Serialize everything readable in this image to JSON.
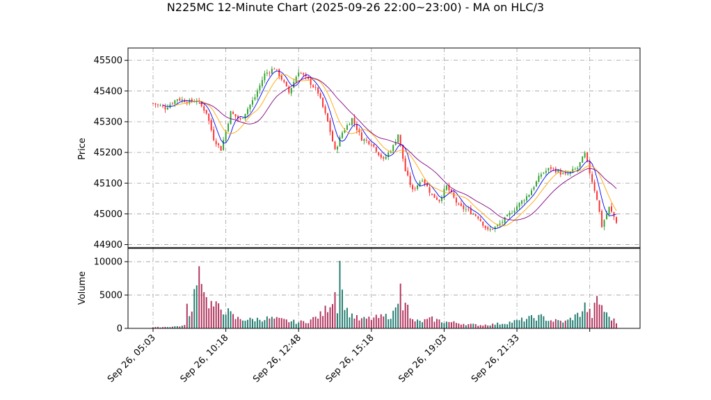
{
  "chart_data": {
    "type": "candlestick",
    "title": "N225MC 12-Minute Chart (2025-09-26 22:00~23:00) - MA on HLC/3",
    "ylabel": "Price",
    "volume_label": "Volume",
    "ylim": [
      44890,
      45540
    ],
    "volume_ylim": [
      0,
      12000
    ],
    "grid": true,
    "price_ticks": [
      45500,
      45400,
      45300,
      45200,
      45100,
      45000,
      44900
    ],
    "volume_ticks": [
      10000,
      5000,
      0
    ],
    "x_tick_labels": [
      "Sep 26, 05:03",
      "Sep 26, 10:18",
      "Sep 26, 12:48",
      "Sep 26, 15:18",
      "Sep 26, 19:03",
      "Sep 26, 21:33"
    ],
    "colors": {
      "up": "#2ca02c",
      "down": "#ff2a2a",
      "ma_fast": "#0000ee",
      "ma_mid": "#ffa500",
      "ma_slow": "#800080",
      "volume_up": "#1f7a6e",
      "volume_down": "#b0305a",
      "grid": "#9e9e9e"
    },
    "price_anchors": [
      [
        0,
        45360
      ],
      [
        5,
        45345
      ],
      [
        10,
        45375
      ],
      [
        15,
        45365
      ],
      [
        18,
        45370
      ],
      [
        22,
        45330
      ],
      [
        25,
        45245
      ],
      [
        28,
        45210
      ],
      [
        32,
        45330
      ],
      [
        36,
        45305
      ],
      [
        42,
        45380
      ],
      [
        46,
        45455
      ],
      [
        50,
        45475
      ],
      [
        53,
        45440
      ],
      [
        56,
        45395
      ],
      [
        60,
        45465
      ],
      [
        64,
        45435
      ],
      [
        68,
        45395
      ],
      [
        72,
        45300
      ],
      [
        75,
        45205
      ],
      [
        78,
        45265
      ],
      [
        82,
        45310
      ],
      [
        86,
        45245
      ],
      [
        90,
        45230
      ],
      [
        95,
        45175
      ],
      [
        99,
        45220
      ],
      [
        101,
        45260
      ],
      [
        104,
        45140
      ],
      [
        107,
        45075
      ],
      [
        111,
        45115
      ],
      [
        115,
        45060
      ],
      [
        118,
        45045
      ],
      [
        121,
        45090
      ],
      [
        126,
        45025
      ],
      [
        130,
        45010
      ],
      [
        134,
        44990
      ],
      [
        138,
        44945
      ],
      [
        142,
        44960
      ],
      [
        146,
        44990
      ],
      [
        150,
        45025
      ],
      [
        155,
        45065
      ],
      [
        160,
        45130
      ],
      [
        164,
        45150
      ],
      [
        170,
        45125
      ],
      [
        175,
        45150
      ],
      [
        178,
        45195
      ],
      [
        180,
        45135
      ],
      [
        183,
        45050
      ],
      [
        185,
        44960
      ],
      [
        188,
        45020
      ],
      [
        191,
        44975
      ]
    ],
    "volume_anchors": [
      [
        0,
        150
      ],
      [
        8,
        250
      ],
      [
        13,
        400
      ],
      [
        14,
        4900
      ],
      [
        15,
        1700
      ],
      [
        16,
        2100
      ],
      [
        18,
        9000
      ],
      [
        20,
        8500
      ],
      [
        22,
        4200
      ],
      [
        25,
        3300
      ],
      [
        30,
        2700
      ],
      [
        34,
        1500
      ],
      [
        40,
        1300
      ],
      [
        48,
        1500
      ],
      [
        56,
        1100
      ],
      [
        60,
        900
      ],
      [
        64,
        1100
      ],
      [
        68,
        1800
      ],
      [
        70,
        2200
      ],
      [
        73,
        3800
      ],
      [
        75,
        5400
      ],
      [
        76,
        3200
      ],
      [
        77,
        11200
      ],
      [
        78,
        5200
      ],
      [
        80,
        2500
      ],
      [
        85,
        1300
      ],
      [
        90,
        1500
      ],
      [
        95,
        1700
      ],
      [
        99,
        2100
      ],
      [
        100,
        3700
      ],
      [
        101,
        3200
      ],
      [
        102,
        8800
      ],
      [
        103,
        3800
      ],
      [
        104,
        4800
      ],
      [
        106,
        1300
      ],
      [
        110,
        1000
      ],
      [
        115,
        1400
      ],
      [
        120,
        1000
      ],
      [
        126,
        800
      ],
      [
        130,
        600
      ],
      [
        135,
        500
      ],
      [
        140,
        600
      ],
      [
        145,
        800
      ],
      [
        150,
        1100
      ],
      [
        155,
        1500
      ],
      [
        160,
        1700
      ],
      [
        164,
        1200
      ],
      [
        170,
        1000
      ],
      [
        176,
        2200
      ],
      [
        178,
        3300
      ],
      [
        181,
        1900
      ],
      [
        183,
        4200
      ],
      [
        185,
        3400
      ],
      [
        187,
        2000
      ],
      [
        189,
        1500
      ],
      [
        191,
        900
      ]
    ],
    "num_bars": 192
  }
}
